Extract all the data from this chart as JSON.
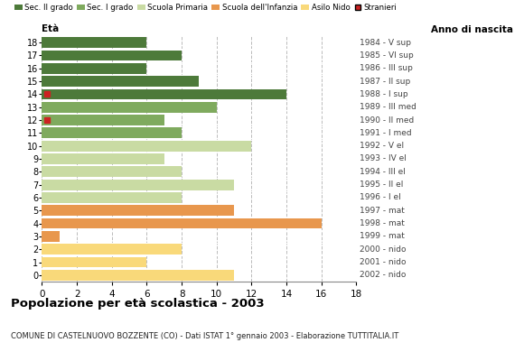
{
  "ages": [
    0,
    1,
    2,
    3,
    4,
    5,
    6,
    7,
    8,
    9,
    10,
    11,
    12,
    13,
    14,
    15,
    16,
    17,
    18
  ],
  "values": [
    11,
    6,
    8,
    1,
    16,
    11,
    8,
    11,
    8,
    7,
    12,
    8,
    7,
    10,
    14,
    9,
    6,
    8,
    6
  ],
  "bar_colors": [
    "#f9d97a",
    "#f9d97a",
    "#f9d97a",
    "#e8974d",
    "#e8974d",
    "#e8974d",
    "#c9dba3",
    "#c9dba3",
    "#c9dba3",
    "#c9dba3",
    "#c9dba3",
    "#7faa5e",
    "#7faa5e",
    "#7faa5e",
    "#4d7a3a",
    "#4d7a3a",
    "#4d7a3a",
    "#4d7a3a",
    "#4d7a3a"
  ],
  "stranieri_ages": [
    12,
    14
  ],
  "anno_nascita": [
    "2002 - nido",
    "2001 - nido",
    "2000 - nido",
    "1999 - mat",
    "1998 - mat",
    "1997 - mat",
    "1996 - I el",
    "1995 - II el",
    "1994 - III el",
    "1993 - IV el",
    "1992 - V el",
    "1991 - I med",
    "1990 - II med",
    "1989 - III med",
    "1988 - I sup",
    "1987 - II sup",
    "1986 - III sup",
    "1985 - VI sup",
    "1984 - V sup"
  ],
  "legend_labels": [
    "Sec. II grado",
    "Sec. I grado",
    "Scuola Primaria",
    "Scuola dell'Infanzia",
    "Asilo Nido",
    "Stranieri"
  ],
  "legend_colors": [
    "#4d7a3a",
    "#7faa5e",
    "#c9dba3",
    "#e8974d",
    "#f9d97a",
    "#cc2222"
  ],
  "title": "Popolazione per età scolastica - 2003",
  "subtitle": "COMUNE DI CASTELNUOVO BOZZENTE (CO) - Dati ISTAT 1° gennaio 2003 - Elaborazione TUTTITALIA.IT",
  "label_eta": "Età",
  "label_anno": "Anno di nascita",
  "xlim": [
    0,
    18
  ],
  "xticks": [
    0,
    2,
    4,
    6,
    8,
    10,
    12,
    14,
    16,
    18
  ],
  "background_color": "#ffffff",
  "grid_color": "#bbbbbb"
}
